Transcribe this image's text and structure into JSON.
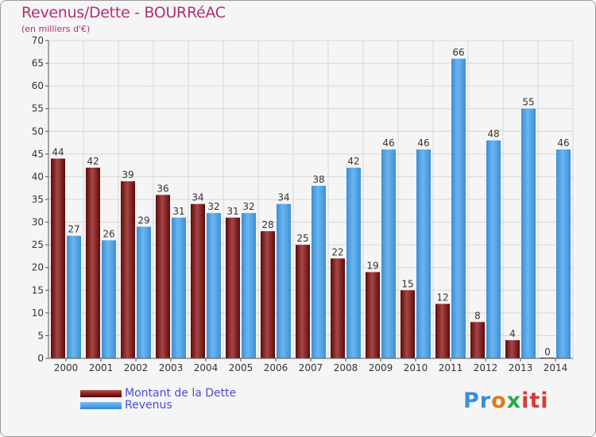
{
  "chart_data": {
    "type": "bar",
    "title": "Revenus/Dette - BOURRéAC",
    "subtitle": "(en milliers d'€)",
    "xlabel": "",
    "ylabel": "",
    "ylim": [
      0,
      70
    ],
    "yticks": [
      0,
      5,
      10,
      15,
      20,
      25,
      30,
      35,
      40,
      45,
      50,
      55,
      60,
      65,
      70
    ],
    "grid": true,
    "categories": [
      "2000",
      "2001",
      "2002",
      "2003",
      "2004",
      "2005",
      "2006",
      "2007",
      "2008",
      "2009",
      "2010",
      "2011",
      "2012",
      "2013",
      "2014"
    ],
    "series": [
      {
        "name": "Montant de la Dette",
        "color": "#7a1a1a",
        "values": [
          44,
          42,
          39,
          36,
          34,
          31,
          28,
          25,
          22,
          19,
          15,
          12,
          8,
          4,
          0
        ]
      },
      {
        "name": "Revenus",
        "color": "#4aa3e8",
        "values": [
          27,
          26,
          29,
          31,
          32,
          32,
          34,
          38,
          42,
          46,
          46,
          66,
          48,
          55,
          46
        ]
      }
    ]
  },
  "legend": {
    "debt_label": "Montant de la Dette",
    "revenue_label": "Revenus"
  },
  "logo": {
    "text": "Proxiti",
    "part1": "Pr",
    "part2": "o",
    "part3": "x",
    "part4": "iti"
  }
}
